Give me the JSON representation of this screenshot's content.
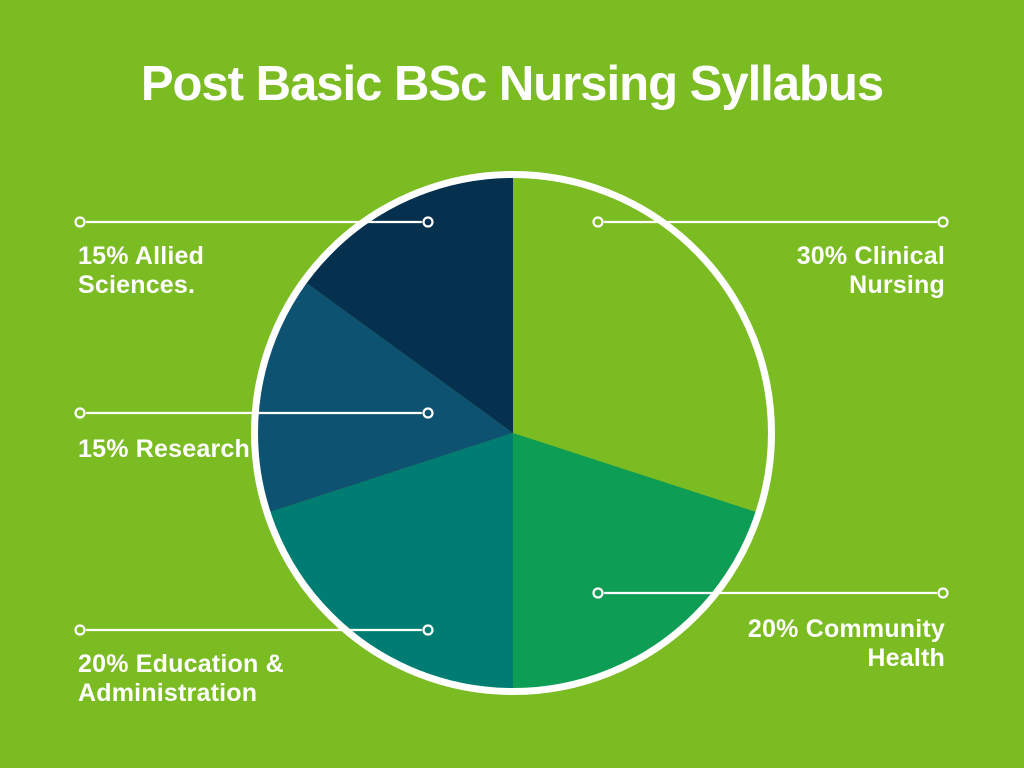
{
  "title": "Post Basic BSc Nursing Syllabus",
  "colors": {
    "background": "#7BBC22",
    "ring": "#FFFFFF",
    "text": "#FFFFFF"
  },
  "chart_data": {
    "type": "pie",
    "title": "Post Basic BSc Nursing Syllabus",
    "start_angle_deg": 0,
    "direction": "clockwise",
    "legend_position": "callout-labels",
    "slices": [
      {
        "id": "clinical-nursing",
        "label": "30% Clinical Nursing",
        "label_lines": [
          "30% Clinical",
          "Nursing"
        ],
        "value": 30,
        "color": "#7BBC22",
        "callout_side": "right"
      },
      {
        "id": "community-health",
        "label": "20% Community Health",
        "label_lines": [
          "20% Community",
          "Health"
        ],
        "value": 20,
        "color": "#0E9D55",
        "callout_side": "right"
      },
      {
        "id": "education-administration",
        "label": "20% Education & Administration",
        "label_lines": [
          "20% Education &",
          "Administration"
        ],
        "value": 20,
        "color": "#007D72",
        "callout_side": "left"
      },
      {
        "id": "research",
        "label": "15% Research",
        "label_lines": [
          "15% Research"
        ],
        "value": 15,
        "color": "#0D5270",
        "callout_side": "left"
      },
      {
        "id": "allied-sciences",
        "label": "15% Allied Sciences.",
        "label_lines": [
          "15% Allied",
          "Sciences."
        ],
        "value": 15,
        "color": "#05304E",
        "callout_side": "left"
      }
    ]
  }
}
